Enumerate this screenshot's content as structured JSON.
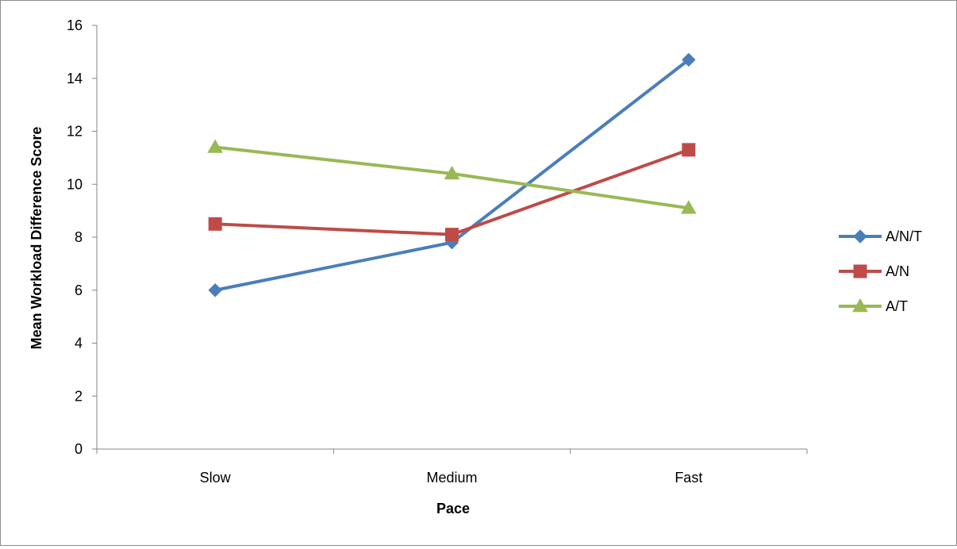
{
  "chart_data": {
    "type": "line",
    "title": "",
    "xlabel": "Pace",
    "ylabel": "Mean Workload Difference Score",
    "categories": [
      "Slow",
      "Medium",
      "Fast"
    ],
    "ylim": [
      0,
      16
    ],
    "yticks": [
      0,
      2,
      4,
      6,
      8,
      10,
      12,
      14,
      16
    ],
    "grid": false,
    "legend_position": "right",
    "series": [
      {
        "name": "A/N/T",
        "values": [
          6.0,
          7.8,
          14.7
        ],
        "color": "#4a7ebb",
        "marker": "diamond"
      },
      {
        "name": "A/N",
        "values": [
          8.5,
          8.1,
          11.3
        ],
        "color": "#be4b48",
        "marker": "square"
      },
      {
        "name": "A/T",
        "values": [
          11.4,
          10.4,
          9.1
        ],
        "color": "#98b954",
        "marker": "triangle"
      }
    ]
  }
}
